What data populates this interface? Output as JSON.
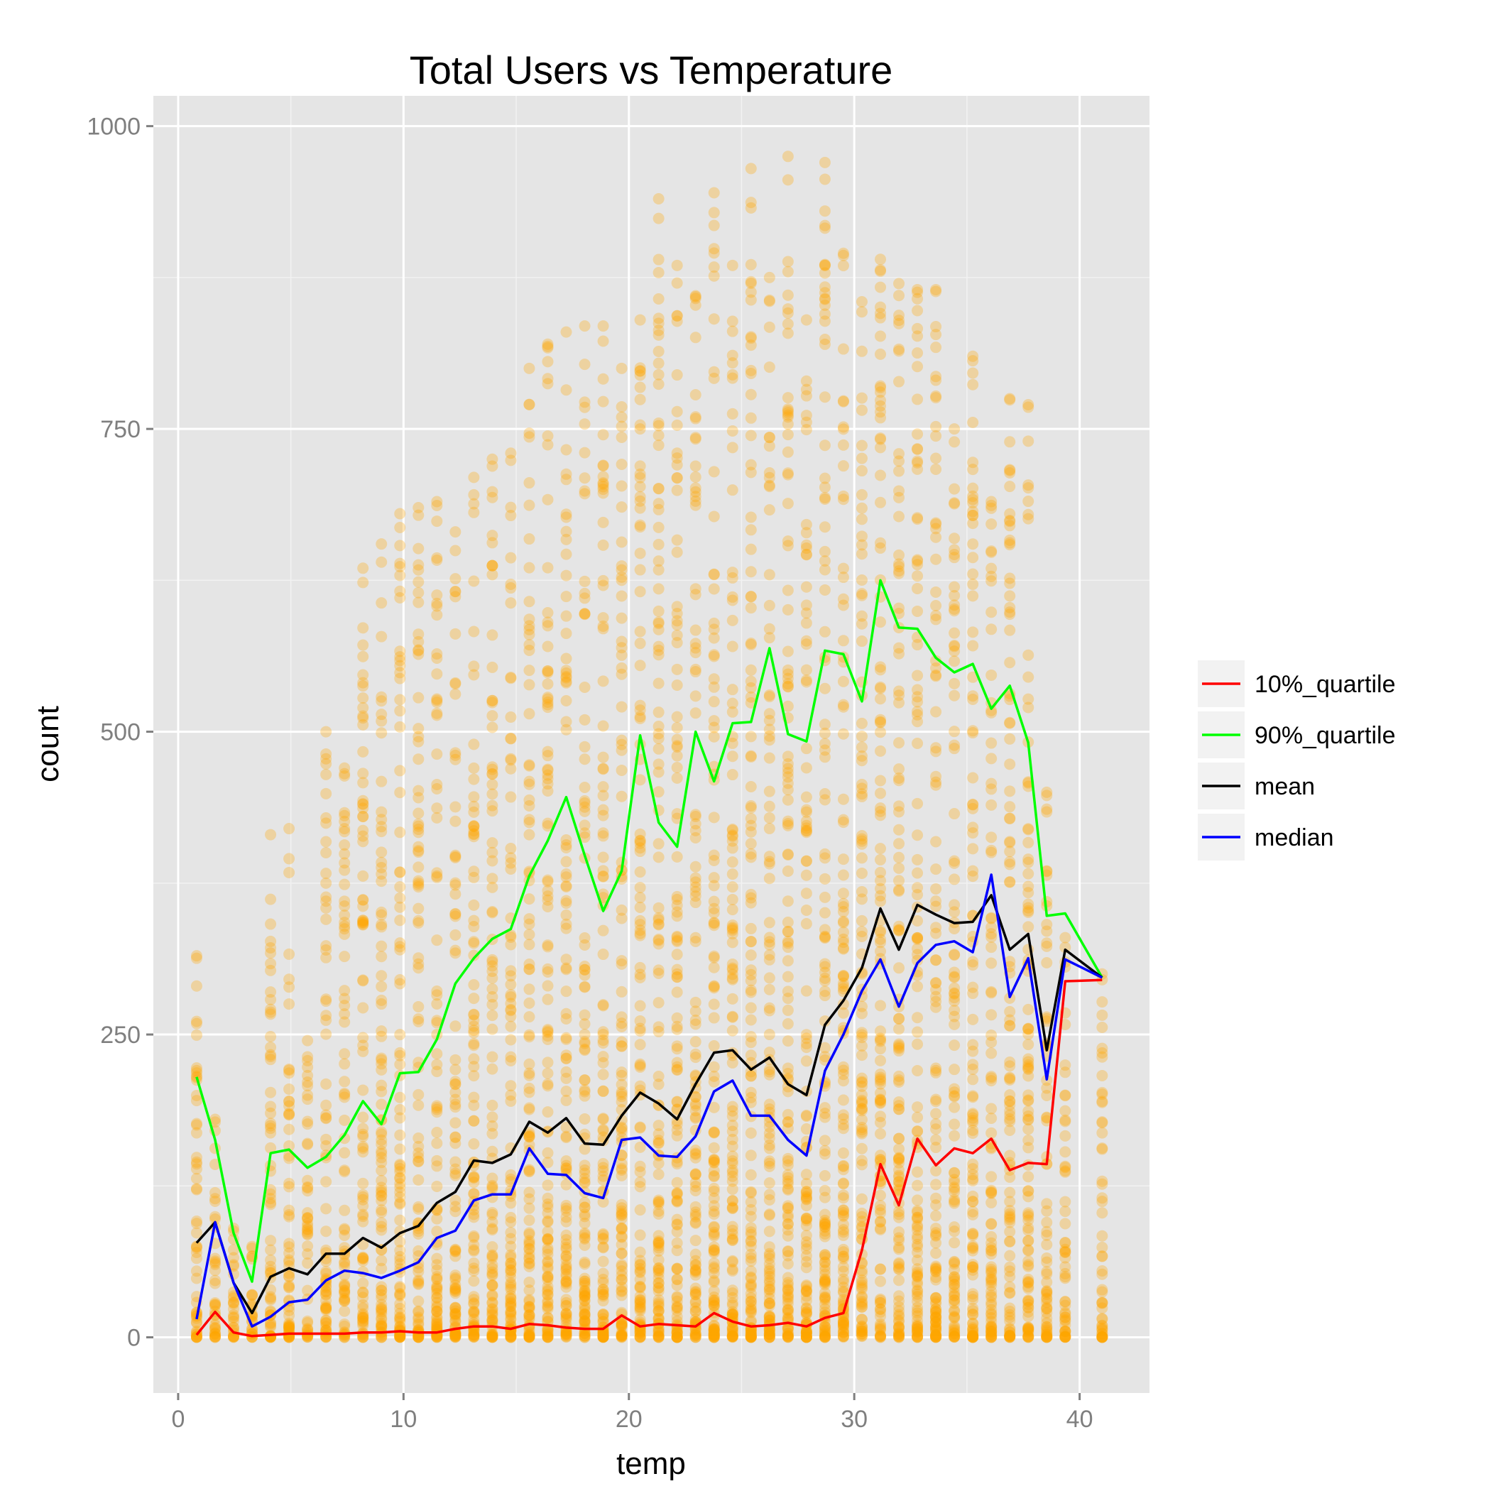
{
  "chart_data": {
    "type": "scatter",
    "title": "Total Users vs Temperature",
    "xlabel": "temp",
    "ylabel": "count",
    "xlim": [
      -1.1,
      43.1
    ],
    "ylim": [
      -46,
      1025
    ],
    "x_ticks": [
      0,
      10,
      20,
      30,
      40
    ],
    "y_ticks": [
      0,
      250,
      500,
      750,
      1000
    ],
    "x_tick_labels": [
      "0",
      "10",
      "20",
      "30",
      "40"
    ],
    "y_tick_labels": [
      "0",
      "250",
      "500",
      "750",
      "1000"
    ],
    "grid": true,
    "legend_position": "right",
    "points_color": "#FFA500",
    "temps": [
      0.82,
      1.64,
      2.46,
      3.28,
      4.1,
      4.92,
      5.74,
      6.56,
      7.38,
      8.2,
      9.02,
      9.84,
      10.66,
      11.48,
      12.3,
      13.12,
      13.94,
      14.76,
      15.58,
      16.4,
      17.22,
      18.04,
      18.86,
      19.68,
      20.5,
      21.32,
      22.14,
      22.96,
      23.78,
      24.6,
      25.42,
      26.24,
      27.06,
      27.88,
      28.7,
      29.52,
      30.34,
      31.16,
      31.98,
      32.8,
      33.62,
      34.44,
      35.26,
      36.08,
      36.9,
      37.72,
      38.54,
      39.36,
      41.0
    ],
    "scatter_max": [
      315,
      180,
      90,
      75,
      415,
      420,
      245,
      500,
      470,
      635,
      655,
      680,
      685,
      690,
      665,
      710,
      725,
      730,
      800,
      820,
      830,
      835,
      835,
      800,
      840,
      940,
      885,
      860,
      945,
      885,
      965,
      875,
      975,
      840,
      970,
      895,
      855,
      890,
      870,
      865,
      865,
      750,
      810,
      690,
      775,
      770,
      450,
      330,
      300
    ],
    "series": [
      {
        "name": "10%_quartile",
        "color": "#FF0000",
        "values": [
          2,
          21,
          4,
          1,
          2,
          3,
          3,
          3,
          3,
          4,
          4,
          5,
          4,
          4,
          7,
          9,
          9,
          7,
          11,
          10,
          8,
          7,
          7,
          18,
          9,
          11,
          10,
          9,
          20,
          13,
          9,
          10,
          12,
          9,
          16,
          20,
          72,
          143,
          109,
          164,
          142,
          156,
          152,
          164,
          138,
          144,
          143,
          294,
          295
        ]
      },
      {
        "name": "90%_quartile",
        "color": "#00FF00",
        "values": [
          215,
          163,
          86,
          46,
          152,
          155,
          140,
          149,
          167,
          195,
          176,
          218,
          219,
          246,
          292,
          313,
          329,
          337,
          381,
          410,
          446,
          398,
          352,
          385,
          497,
          425,
          405,
          500,
          459,
          507,
          508,
          569,
          498,
          492,
          567,
          564,
          525,
          625,
          586,
          585,
          561,
          549,
          556,
          519,
          538,
          491,
          348,
          350,
          297
        ]
      },
      {
        "name": "mean",
        "color": "#000000",
        "values": [
          78,
          95,
          45,
          20,
          50,
          57,
          52,
          69,
          69,
          82,
          74,
          86,
          92,
          111,
          120,
          146,
          144,
          151,
          178,
          169,
          181,
          160,
          159,
          183,
          202,
          193,
          180,
          209,
          235,
          237,
          221,
          231,
          209,
          200,
          258,
          278,
          305,
          354,
          320,
          357,
          349,
          342,
          343,
          365,
          320,
          333,
          237,
          320,
          297
        ]
      },
      {
        "name": "median",
        "color": "#0000FF",
        "values": [
          15,
          95,
          45,
          9,
          17,
          29,
          31,
          47,
          55,
          53,
          49,
          55,
          62,
          82,
          88,
          113,
          118,
          118,
          156,
          135,
          134,
          119,
          115,
          163,
          165,
          150,
          149,
          166,
          203,
          212,
          183,
          183,
          163,
          150,
          220,
          250,
          286,
          312,
          273,
          309,
          324,
          327,
          318,
          382,
          281,
          313,
          213,
          312,
          297
        ]
      }
    ]
  }
}
